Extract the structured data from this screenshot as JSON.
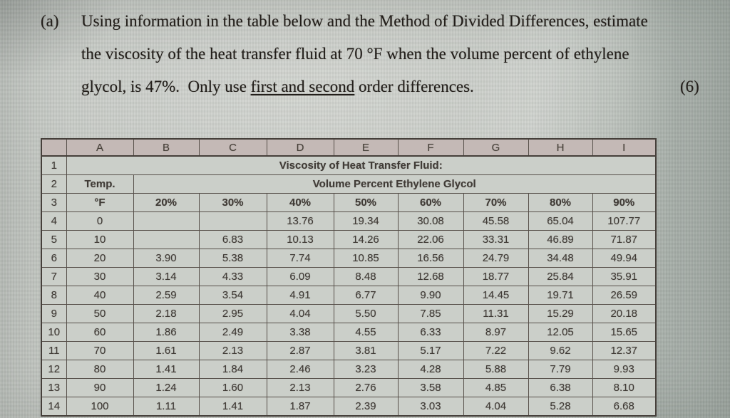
{
  "problem": {
    "label": "(a)",
    "lines": [
      "Using information in the table below and the Method of Divided Differences, estimate",
      "the viscosity of the heat transfer fluid at 70 °F when the volume percent of ethylene"
    ],
    "line3_pre": "glycol, is 47%.  Only use ",
    "line3_underline": "first and second",
    "line3_post": " order differences.",
    "marks": "(6)"
  },
  "spreadsheet": {
    "column_letters": [
      "A",
      "B",
      "C",
      "D",
      "E",
      "F",
      "G",
      "H",
      "I"
    ],
    "row_numbers": [
      "1",
      "2",
      "3",
      "4",
      "5",
      "6",
      "7",
      "8",
      "9",
      "10",
      "11",
      "12",
      "13",
      "14"
    ],
    "title": "Viscosity of Heat Transfer Fluid:",
    "temp_header": "Temp.",
    "group_header": "Volume Percent Ethylene Glycol",
    "unit_header": "°F",
    "percent_headers": [
      "20%",
      "30%",
      "40%",
      "50%",
      "60%",
      "70%",
      "80%",
      "90%"
    ],
    "rows": [
      {
        "temp": "0",
        "values": [
          "",
          "",
          "13.76",
          "19.34",
          "30.08",
          "45.58",
          "65.04",
          "107.77"
        ]
      },
      {
        "temp": "10",
        "values": [
          "",
          "6.83",
          "10.13",
          "14.26",
          "22.06",
          "33.31",
          "46.89",
          "71.87"
        ]
      },
      {
        "temp": "20",
        "values": [
          "3.90",
          "5.38",
          "7.74",
          "10.85",
          "16.56",
          "24.79",
          "34.48",
          "49.94"
        ]
      },
      {
        "temp": "30",
        "values": [
          "3.14",
          "4.33",
          "6.09",
          "8.48",
          "12.68",
          "18.77",
          "25.84",
          "35.91"
        ]
      },
      {
        "temp": "40",
        "values": [
          "2.59",
          "3.54",
          "4.91",
          "6.77",
          "9.90",
          "14.45",
          "19.71",
          "26.59"
        ]
      },
      {
        "temp": "50",
        "values": [
          "2.18",
          "2.95",
          "4.04",
          "5.50",
          "7.85",
          "11.31",
          "15.29",
          "20.18"
        ]
      },
      {
        "temp": "60",
        "values": [
          "1.86",
          "2.49",
          "3.38",
          "4.55",
          "6.33",
          "8.97",
          "12.05",
          "15.65"
        ]
      },
      {
        "temp": "70",
        "values": [
          "1.61",
          "2.13",
          "2.87",
          "3.81",
          "5.17",
          "7.22",
          "9.62",
          "12.37"
        ]
      },
      {
        "temp": "80",
        "values": [
          "1.41",
          "1.84",
          "2.46",
          "3.23",
          "4.28",
          "5.88",
          "7.79",
          "9.93"
        ]
      },
      {
        "temp": "90",
        "values": [
          "1.24",
          "1.60",
          "2.13",
          "2.76",
          "3.58",
          "4.85",
          "6.38",
          "8.10"
        ]
      },
      {
        "temp": "100",
        "values": [
          "1.11",
          "1.41",
          "1.87",
          "2.39",
          "3.03",
          "4.04",
          "5.28",
          "6.68"
        ]
      }
    ],
    "colors": {
      "grid_line": "#57504a",
      "outer_border": "#453f3a",
      "cell_bg": "#cbcfc9",
      "letter_header_bg": "#c4b9b6",
      "row_header_bg": "#c7c6c1",
      "text": "#403b36"
    }
  }
}
